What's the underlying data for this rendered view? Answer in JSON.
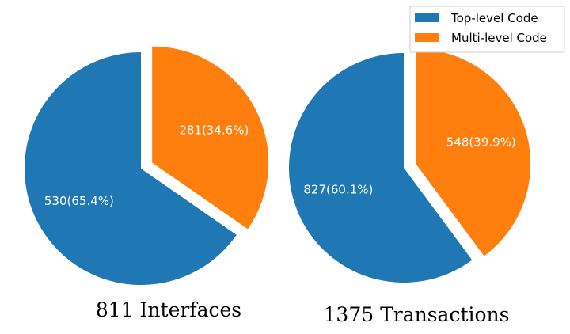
{
  "colors": {
    "top_level": "#1f77b4",
    "multi_level": "#ff7f0e"
  },
  "legend": {
    "placement": "top-right",
    "items": [
      {
        "label": "Top-level Code",
        "color": "#1f77b4"
      },
      {
        "label": "Multi-level Code",
        "color": "#ff7f0e"
      }
    ]
  },
  "chart_data": [
    {
      "type": "pie",
      "caption": "811 Interfaces",
      "categories": [
        "Top-level Code",
        "Multi-level Code"
      ],
      "values": [
        530,
        281
      ],
      "slice_labels": [
        "530(65.4%)",
        "281(34.6%)"
      ],
      "exploded": [
        "Multi-level Code"
      ]
    },
    {
      "type": "pie",
      "caption": "1375 Transactions",
      "categories": [
        "Top-level Code",
        "Multi-level Code"
      ],
      "values": [
        827,
        548
      ],
      "slice_labels": [
        "827(60.1%)",
        "548(39.9%)"
      ],
      "exploded": [
        "Multi-level Code"
      ]
    }
  ]
}
